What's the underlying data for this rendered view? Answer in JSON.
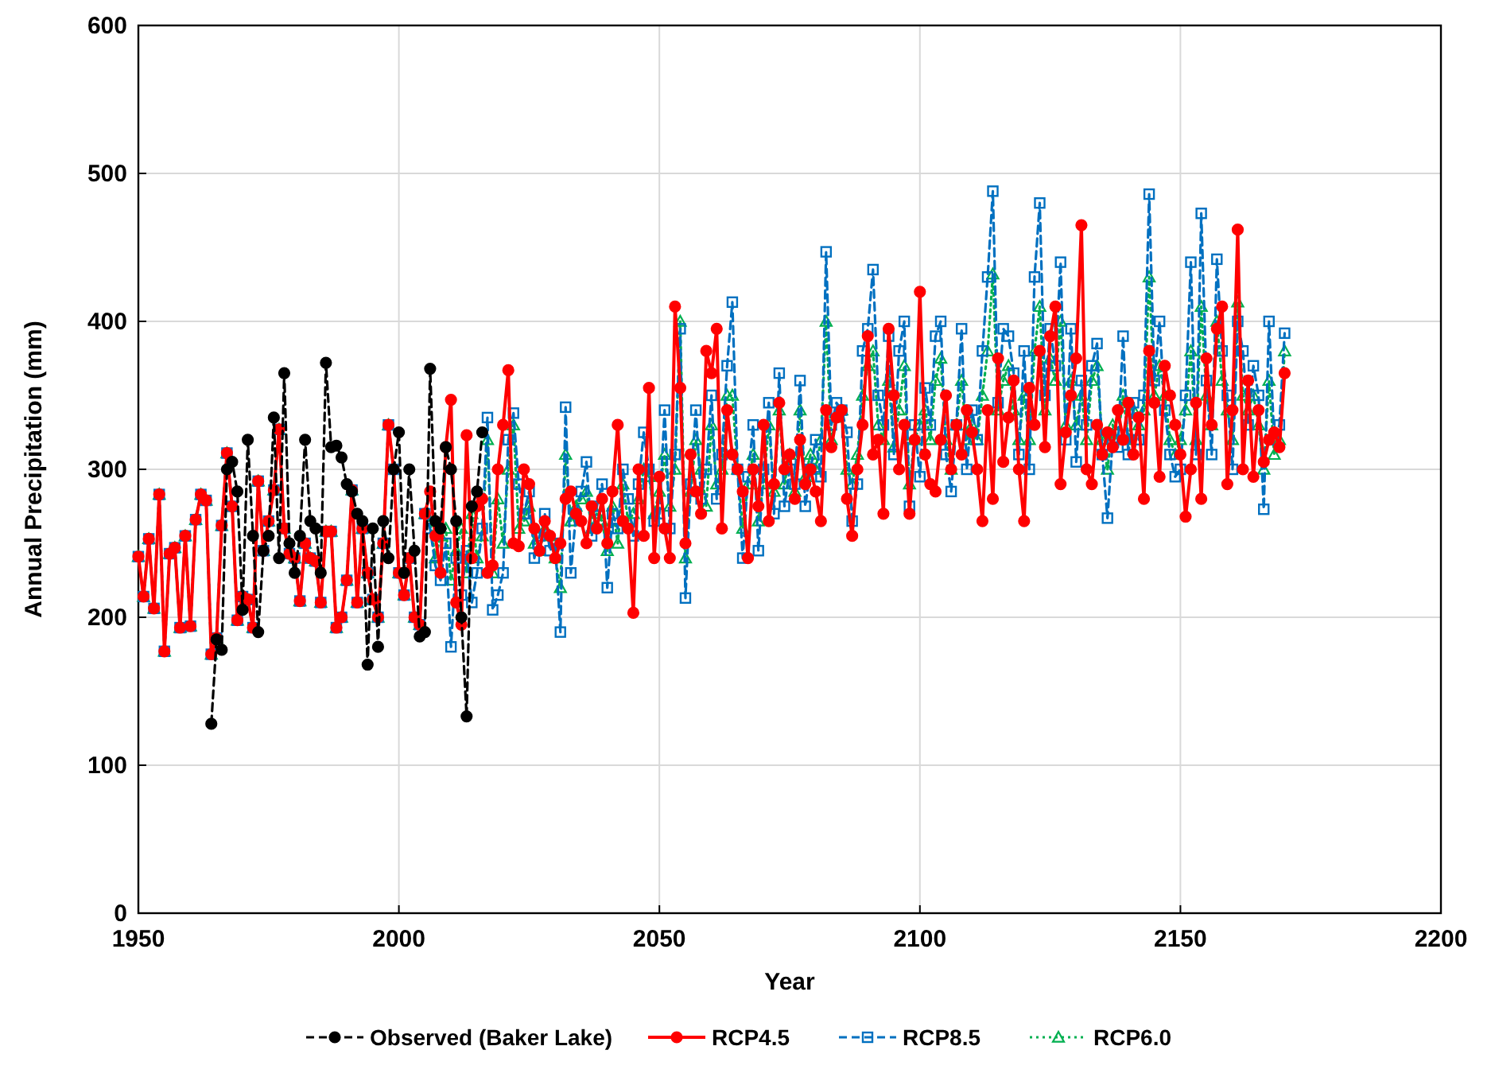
{
  "chart_data": {
    "type": "line",
    "xlabel": "Year",
    "ylabel": "Annual Precipitation (mm)",
    "xlim": [
      1950,
      2200
    ],
    "xticks": [
      1950,
      2000,
      2050,
      2100,
      2150,
      2200
    ],
    "ylim": [
      0,
      600
    ],
    "yticks": [
      0,
      100,
      200,
      300,
      400,
      500,
      600
    ],
    "grid": true,
    "legend": "bottom",
    "x": [
      1950,
      1951,
      1952,
      1953,
      1954,
      1955,
      1956,
      1957,
      1958,
      1959,
      1960,
      1961,
      1962,
      1963,
      1964,
      1965,
      1966,
      1967,
      1968,
      1969,
      1970,
      1971,
      1972,
      1973,
      1974,
      1975,
      1976,
      1977,
      1978,
      1979,
      1980,
      1981,
      1982,
      1983,
      1984,
      1985,
      1986,
      1987,
      1988,
      1989,
      1990,
      1991,
      1992,
      1993,
      1994,
      1995,
      1996,
      1997,
      1998,
      1999,
      2000,
      2001,
      2002,
      2003,
      2004,
      2005,
      2006,
      2007,
      2008,
      2009,
      2010,
      2011,
      2012,
      2013,
      2014,
      2015,
      2016,
      2017,
      2018,
      2019,
      2020,
      2021,
      2022,
      2023,
      2024,
      2025,
      2026,
      2027,
      2028,
      2029,
      2030,
      2031,
      2032,
      2033,
      2034,
      2035,
      2036,
      2037,
      2038,
      2039,
      2040,
      2041,
      2042,
      2043,
      2044,
      2045,
      2046,
      2047,
      2048,
      2049,
      2050,
      2051,
      2052,
      2053,
      2054,
      2055,
      2056,
      2057,
      2058,
      2059,
      2060,
      2061,
      2062,
      2063,
      2064,
      2065,
      2066,
      2067,
      2068,
      2069,
      2070,
      2071,
      2072,
      2073,
      2074,
      2075,
      2076,
      2077,
      2078,
      2079,
      2080,
      2081,
      2082,
      2083,
      2084,
      2085,
      2086,
      2087,
      2088,
      2089,
      2090,
      2091,
      2092,
      2093,
      2094,
      2095,
      2096,
      2097,
      2098,
      2099,
      2100,
      2101,
      2102,
      2103,
      2104,
      2105,
      2106,
      2107,
      2108,
      2109,
      2110,
      2111,
      2112,
      2113,
      2114,
      2115,
      2116,
      2117,
      2118,
      2119,
      2120,
      2121,
      2122,
      2123,
      2124,
      2125,
      2126,
      2127,
      2128,
      2129,
      2130,
      2131,
      2132,
      2133,
      2134,
      2135,
      2136,
      2137,
      2138,
      2139,
      2140,
      2141,
      2142,
      2143,
      2144,
      2145,
      2146,
      2147,
      2148,
      2149,
      2150,
      2151,
      2152,
      2153,
      2154,
      2155,
      2156,
      2157,
      2158,
      2159,
      2160,
      2161,
      2162,
      2163,
      2164,
      2165,
      2166,
      2167,
      2168,
      2169,
      2170
    ],
    "series": [
      {
        "name": "Observed (Baker Lake)",
        "color": "#000000",
        "marker": "circle",
        "line_style": "dashed",
        "x": [
          1964,
          1965,
          1966,
          1967,
          1968,
          1969,
          1970,
          1971,
          1972,
          1973,
          1974,
          1975,
          1976,
          1977,
          1978,
          1979,
          1980,
          1981,
          1982,
          1983,
          1984,
          1985,
          1986,
          1987,
          1988,
          1989,
          1990,
          1991,
          1992,
          1993,
          1994,
          1995,
          1996,
          1997,
          1998,
          1999,
          2000,
          2001,
          2002,
          2003,
          2004,
          2005,
          2006,
          2007,
          2008,
          2009,
          2010,
          2011,
          2012,
          2013,
          2014,
          2015,
          2016
        ],
        "values": [
          128,
          185,
          178,
          300,
          305,
          285,
          205,
          320,
          255,
          190,
          245,
          255,
          335,
          240,
          365,
          250,
          230,
          255,
          320,
          265,
          260,
          230,
          372,
          315,
          316,
          308,
          290,
          285,
          270,
          265,
          168,
          260,
          180,
          265,
          240,
          300,
          325,
          230,
          300,
          245,
          187,
          190,
          368,
          265,
          260,
          315,
          300,
          265,
          200,
          133,
          275,
          285,
          325
        ]
      },
      {
        "name": "RCP4.5",
        "color": "#ff0000",
        "marker": "circle",
        "line_style": "solid",
        "values": [
          241,
          214,
          253,
          206,
          283,
          177,
          243,
          247,
          193,
          255,
          194,
          266,
          283,
          279,
          175,
          186,
          262,
          311,
          275,
          198,
          214,
          212,
          193,
          292,
          245,
          265,
          286,
          327,
          260,
          243,
          240,
          211,
          250,
          240,
          238,
          210,
          258,
          258,
          193,
          200,
          225,
          286,
          210,
          260,
          230,
          212,
          200,
          250,
          330,
          300,
          230,
          215,
          240,
          200,
          195,
          270,
          285,
          255,
          230,
          315,
          347,
          210,
          195,
          323,
          240,
          275,
          280,
          230,
          235,
          300,
          330,
          367,
          250,
          248,
          300,
          290,
          260,
          245,
          265,
          255,
          240,
          250,
          280,
          285,
          270,
          265,
          250,
          275,
          260,
          280,
          250,
          285,
          330,
          265,
          260,
          203,
          300,
          255,
          355,
          240,
          295,
          260,
          240,
          410,
          355,
          250,
          310,
          285,
          270,
          380,
          365,
          395,
          260,
          340,
          310,
          300,
          285,
          240,
          300,
          275,
          330,
          265,
          290,
          345,
          300,
          310,
          280,
          320,
          290,
          300,
          285,
          265,
          340,
          315,
          335,
          340,
          280,
          255,
          300,
          330,
          390,
          310,
          320,
          270,
          395,
          350,
          300,
          330,
          270,
          320,
          420,
          310,
          290,
          285,
          320,
          350,
          300,
          330,
          310,
          340,
          325,
          300,
          265,
          340,
          280,
          375,
          305,
          335,
          360,
          300,
          265,
          355,
          330,
          380,
          315,
          390,
          410,
          290,
          325,
          350,
          375,
          465,
          300,
          290,
          330,
          310,
          325,
          315,
          340,
          320,
          345,
          310,
          335,
          280,
          380,
          345,
          295,
          370,
          350,
          330,
          310,
          268,
          300,
          345,
          280,
          375,
          330,
          395,
          410,
          290,
          340,
          462,
          300,
          360,
          295,
          340,
          305,
          320,
          325,
          315,
          365
        ]
      },
      {
        "name": "RCP8.5",
        "color": "#0070c0",
        "marker": "square",
        "line_style": "dashed",
        "values": [
          241,
          214,
          253,
          206,
          283,
          177,
          243,
          247,
          193,
          255,
          194,
          266,
          283,
          279,
          175,
          186,
          262,
          311,
          275,
          198,
          214,
          212,
          193,
          292,
          245,
          265,
          286,
          327,
          260,
          243,
          240,
          211,
          250,
          240,
          238,
          210,
          258,
          258,
          193,
          200,
          225,
          286,
          210,
          260,
          230,
          212,
          200,
          250,
          330,
          300,
          230,
          215,
          240,
          200,
          195,
          270,
          260,
          235,
          225,
          250,
          180,
          240,
          215,
          245,
          210,
          230,
          260,
          335,
          205,
          215,
          230,
          320,
          338,
          290,
          270,
          285,
          240,
          255,
          270,
          245,
          250,
          190,
          342,
          230,
          270,
          285,
          305,
          255,
          275,
          290,
          220,
          270,
          260,
          300,
          280,
          255,
          290,
          325,
          300,
          265,
          270,
          340,
          260,
          310,
          395,
          213,
          290,
          340,
          280,
          300,
          350,
          280,
          310,
          370,
          413,
          300,
          240,
          295,
          330,
          245,
          300,
          345,
          270,
          365,
          275,
          300,
          290,
          360,
          275,
          300,
          320,
          295,
          447,
          330,
          345,
          340,
          325,
          265,
          290,
          380,
          395,
          435,
          350,
          330,
          390,
          310,
          380,
          400,
          275,
          330,
          295,
          355,
          330,
          390,
          400,
          310,
          285,
          330,
          395,
          300,
          340,
          320,
          380,
          430,
          488,
          345,
          395,
          390,
          365,
          310,
          380,
          300,
          430,
          480,
          350,
          395,
          370,
          440,
          320,
          395,
          305,
          360,
          330,
          370,
          385,
          310,
          267,
          320,
          315,
          390,
          310,
          345,
          320,
          350,
          486,
          360,
          400,
          340,
          310,
          295,
          300,
          350,
          440,
          310,
          473,
          360,
          310,
          442,
          380,
          350,
          300,
          400,
          380,
          330,
          370,
          350,
          273,
          400,
          320,
          330,
          392
        ]
      },
      {
        "name": "RCP6.0",
        "color": "#00b050",
        "marker": "triangle",
        "line_style": "dotted",
        "values": [
          241,
          214,
          253,
          206,
          283,
          177,
          243,
          247,
          193,
          255,
          194,
          266,
          283,
          279,
          175,
          186,
          262,
          311,
          275,
          198,
          214,
          212,
          193,
          292,
          245,
          265,
          286,
          327,
          260,
          243,
          240,
          211,
          250,
          240,
          238,
          210,
          258,
          258,
          193,
          200,
          225,
          286,
          210,
          260,
          230,
          212,
          200,
          250,
          330,
          300,
          230,
          215,
          240,
          200,
          195,
          270,
          265,
          240,
          255,
          260,
          225,
          245,
          260,
          230,
          270,
          240,
          255,
          320,
          230,
          280,
          250,
          300,
          330,
          260,
          265,
          275,
          250,
          245,
          260,
          255,
          240,
          220,
          310,
          265,
          275,
          280,
          285,
          260,
          270,
          265,
          245,
          275,
          250,
          290,
          265,
          270,
          280,
          300,
          295,
          270,
          285,
          310,
          275,
          300,
          400,
          240,
          285,
          320,
          300,
          275,
          330,
          290,
          300,
          350,
          350,
          300,
          260,
          290,
          310,
          265,
          290,
          330,
          285,
          340,
          290,
          310,
          285,
          340,
          295,
          310,
          300,
          320,
          400,
          320,
          335,
          340,
          300,
          290,
          310,
          350,
          370,
          380,
          330,
          320,
          360,
          315,
          340,
          370,
          290,
          320,
          330,
          340,
          320,
          360,
          375,
          320,
          300,
          330,
          360,
          320,
          330,
          320,
          350,
          380,
          432,
          340,
          360,
          370,
          340,
          320,
          350,
          320,
          380,
          410,
          340,
          375,
          360,
          400,
          330,
          360,
          330,
          350,
          320,
          360,
          370,
          320,
          300,
          330,
          320,
          350,
          320,
          340,
          330,
          340,
          430,
          350,
          370,
          350,
          320,
          310,
          320,
          340,
          380,
          320,
          410,
          350,
          330,
          400,
          360,
          340,
          320,
          413,
          350,
          340,
          350,
          330,
          300,
          360,
          310,
          320,
          380
        ]
      }
    ]
  }
}
